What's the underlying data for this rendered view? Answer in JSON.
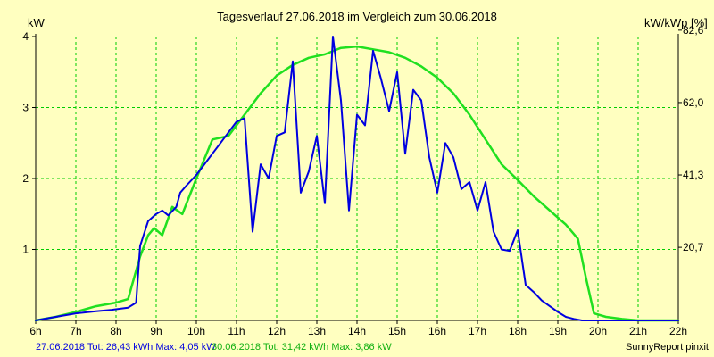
{
  "colors": {
    "background": "#ffffc0",
    "grid": "#00cc00",
    "series_2018_06_27": "#0000e0",
    "series_2018_06_30": "#20e020"
  },
  "footer": {
    "series1_label": "27.06.2018 Tot: 26,43 kWh Max: 4,05 kW",
    "series2_label": "30.06.2018 Tot: 31,42 kWh Max: 3,86 kW",
    "credit": "SunnyReport pinxit"
  },
  "chart_data": {
    "type": "line",
    "title": "Tagesverlauf 27.06.2018 im Vergleich zum 30.06.2018",
    "ylabel_left": "kW",
    "ylabel_right": "kW/kWp [%]",
    "xlim": [
      6,
      22
    ],
    "ylim": [
      0,
      4
    ],
    "x_ticks": [
      "6h",
      "7h",
      "8h",
      "9h",
      "10h",
      "11h",
      "12h",
      "13h",
      "14h",
      "15h",
      "16h",
      "17h",
      "18h",
      "19h",
      "20h",
      "21h",
      "22h"
    ],
    "y_ticks_left": [
      "1",
      "2",
      "3",
      "4"
    ],
    "y_ticks_right": [
      {
        "value": 1.03,
        "label": "20,7"
      },
      {
        "value": 2.05,
        "label": "41,3"
      },
      {
        "value": 3.07,
        "label": "62,0"
      },
      {
        "value": 4.09,
        "label": "82,6"
      }
    ],
    "grid": true,
    "series": [
      {
        "name": "27.06.2018",
        "x": [
          6.0,
          6.5,
          7.0,
          7.5,
          7.9,
          8.3,
          8.5,
          8.6,
          8.8,
          9.0,
          9.15,
          9.3,
          9.5,
          9.6,
          9.75,
          10.0,
          10.2,
          10.4,
          10.6,
          10.8,
          11.0,
          11.2,
          11.4,
          11.6,
          11.8,
          12.0,
          12.2,
          12.4,
          12.6,
          12.8,
          13.0,
          13.2,
          13.4,
          13.6,
          13.8,
          14.0,
          14.2,
          14.4,
          14.6,
          14.8,
          15.0,
          15.2,
          15.4,
          15.6,
          15.8,
          16.0,
          16.2,
          16.4,
          16.6,
          16.8,
          17.0,
          17.2,
          17.4,
          17.6,
          17.8,
          18.0,
          18.2,
          18.4,
          18.6,
          18.8,
          19.0,
          19.2,
          19.4,
          19.6,
          19.8,
          20.0,
          20.3,
          20.6,
          21.0,
          21.4,
          21.8,
          22.0
        ],
        "y": [
          0.0,
          0.05,
          0.1,
          0.13,
          0.15,
          0.18,
          0.25,
          1.05,
          1.4,
          1.5,
          1.55,
          1.48,
          1.6,
          1.8,
          1.9,
          2.05,
          2.2,
          2.35,
          2.5,
          2.65,
          2.8,
          2.85,
          1.25,
          2.2,
          2.0,
          2.6,
          2.65,
          3.65,
          1.8,
          2.1,
          2.6,
          1.65,
          4.0,
          3.1,
          1.55,
          2.9,
          2.75,
          3.8,
          3.4,
          2.95,
          3.5,
          2.35,
          3.25,
          3.1,
          2.3,
          1.8,
          2.5,
          2.3,
          1.85,
          1.95,
          1.55,
          1.95,
          1.25,
          1.0,
          0.98,
          1.27,
          0.5,
          0.4,
          0.28,
          0.2,
          0.12,
          0.05,
          0.02,
          0.0,
          0.0,
          0.0,
          0.0,
          0.0,
          0.0,
          0.0,
          0.0,
          0.0
        ]
      },
      {
        "name": "30.06.2018",
        "x": [
          6.0,
          6.5,
          7.0,
          7.5,
          8.0,
          8.3,
          8.6,
          8.8,
          8.95,
          9.15,
          9.4,
          9.65,
          10.0,
          10.4,
          10.8,
          11.2,
          11.6,
          12.0,
          12.4,
          12.8,
          13.2,
          13.6,
          14.0,
          14.4,
          14.8,
          15.2,
          15.6,
          16.0,
          16.4,
          16.8,
          17.2,
          17.6,
          18.0,
          18.4,
          18.8,
          19.2,
          19.5,
          19.7,
          19.9,
          20.2,
          20.6,
          21.0,
          21.5,
          22.0
        ],
        "y": [
          0.0,
          0.05,
          0.12,
          0.2,
          0.25,
          0.3,
          0.9,
          1.2,
          1.3,
          1.2,
          1.6,
          1.5,
          2.0,
          2.55,
          2.6,
          2.9,
          3.2,
          3.45,
          3.6,
          3.7,
          3.75,
          3.84,
          3.86,
          3.82,
          3.78,
          3.7,
          3.58,
          3.42,
          3.2,
          2.9,
          2.55,
          2.2,
          1.98,
          1.75,
          1.55,
          1.35,
          1.15,
          0.6,
          0.1,
          0.05,
          0.02,
          0.0,
          0.0,
          0.0
        ]
      }
    ]
  }
}
